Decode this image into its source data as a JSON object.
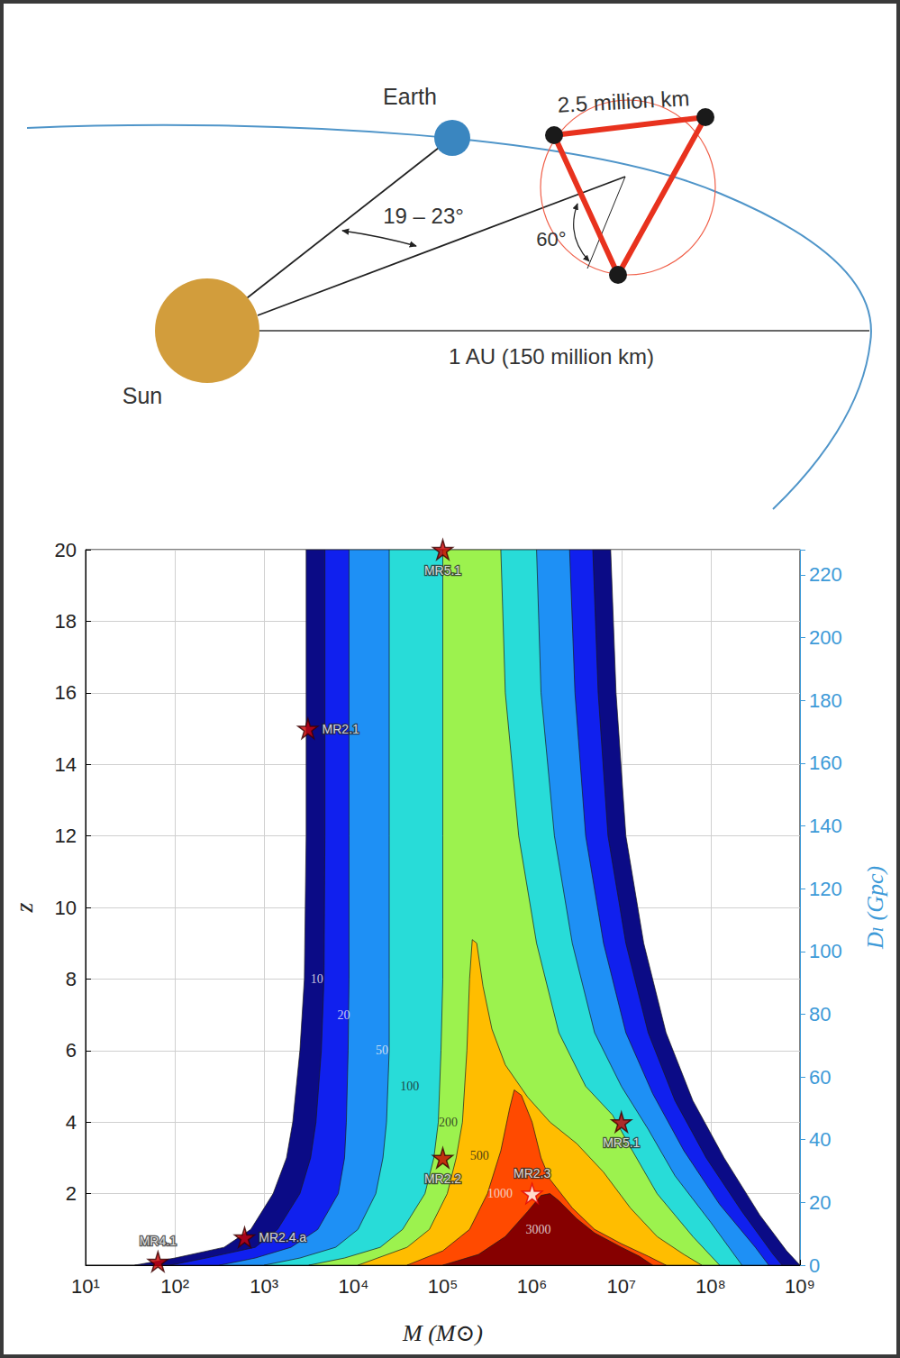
{
  "diagram": {
    "labels": {
      "earth": "Earth",
      "sun": "Sun",
      "arm_length": "2.5 million km",
      "trail_angle": "19 – 23°",
      "tilt": "60°",
      "distance": "1 AU (150 million km)"
    }
  },
  "chart_data": {
    "type": "contour",
    "x_label": "M (M⊙)",
    "y_label": "z",
    "y2_label": "Dₗ (Gpc)",
    "log": "x",
    "grid": true,
    "xlim": [
      10,
      1000000000
    ],
    "xticks": [
      {
        "value": 10,
        "label": "10¹"
      },
      {
        "value": 100,
        "label": "10²"
      },
      {
        "value": 1000,
        "label": "10³"
      },
      {
        "value": 10000,
        "label": "10⁴"
      },
      {
        "value": 100000,
        "label": "10⁵"
      },
      {
        "value": 1000000,
        "label": "10⁶"
      },
      {
        "value": 10000000,
        "label": "10⁷"
      },
      {
        "value": 100000000,
        "label": "10⁸"
      },
      {
        "value": 1000000000,
        "label": "10⁹"
      }
    ],
    "ylim": [
      0,
      20
    ],
    "yticks": [
      2,
      4,
      6,
      8,
      10,
      12,
      14,
      16,
      18,
      20
    ],
    "y2lim": [
      0,
      228
    ],
    "y2ticks": [
      0,
      20,
      40,
      60,
      80,
      100,
      120,
      140,
      160,
      180,
      200,
      220
    ],
    "contours": [
      {
        "level": 10,
        "color": "#0b0b86",
        "label_x": 3890,
        "label_y": 8,
        "x": [
          35.5,
          100,
          355,
          708,
          1259,
          1778,
          2089,
          2512,
          2818,
          2951,
          2951,
          7586000,
          8710000,
          11220000,
          17780000,
          31620000,
          63100000,
          141300000,
          354800000,
          707900000,
          1000000000
        ],
        "y": [
          0,
          0.2,
          0.5,
          1,
          2,
          3,
          4,
          6,
          8,
          12,
          20,
          20,
          16,
          12,
          9,
          6.5,
          4.6,
          3.0,
          1.4,
          0.4,
          0
        ]
      },
      {
        "level": 20,
        "color": "#1020ee",
        "label_x": 7762,
        "label_y": 7,
        "x": [
          89.1,
          224,
          794,
          1413,
          2512,
          3311,
          3802,
          4365,
          4677,
          4786,
          4786,
          4786000,
          5495000,
          7079000,
          11220000,
          19950000,
          39810000,
          89130000,
          223900000,
          501200000,
          631000000
        ],
        "y": [
          0,
          0.2,
          0.5,
          1,
          2,
          3,
          4,
          6,
          8,
          12,
          20,
          20,
          16,
          12,
          9,
          6.5,
          4.6,
          3.0,
          1.5,
          0.3,
          0
        ]
      },
      {
        "level": 50,
        "color": "#1e90f5",
        "label_x": 20890,
        "label_y": 6,
        "x": [
          316,
          794,
          1995,
          3981,
          6761,
          7943,
          8318,
          8710,
          8913,
          8913,
          8913,
          2630000,
          3020000,
          3981000,
          6310000,
          11220000,
          22390000,
          50120000,
          125900000,
          316200000,
          446700000
        ],
        "y": [
          0,
          0.2,
          0.5,
          1,
          2,
          3,
          4,
          6,
          8,
          12,
          20,
          20,
          16,
          12,
          9,
          6.5,
          4.8,
          3.2,
          1.7,
          0.5,
          0
        ]
      },
      {
        "level": 100,
        "color": "#28dcd8",
        "label_x": 42660,
        "label_y": 5,
        "x": [
          1000,
          2512,
          6310,
          11220,
          17780,
          21380,
          23440,
          25120,
          25120,
          25120,
          25120,
          1122000,
          1259000,
          1778000,
          2818000,
          5012000,
          10000000,
          19950000,
          39810000,
          100000000,
          223900000
        ],
        "y": [
          0,
          0.2,
          0.5,
          1,
          2,
          3,
          4,
          6,
          8,
          12,
          20,
          20,
          16,
          12,
          9,
          6.5,
          5,
          3.8,
          2.5,
          1.2,
          0
        ]
      },
      {
        "level": 200,
        "color": "#9cf24e",
        "label_x": 114800,
        "label_y": 4,
        "x": [
          3162,
          7943,
          19950,
          35480,
          63100,
          79430,
          89130,
          95500,
          100000,
          100000,
          100000,
          446700,
          501200,
          707900,
          1122000,
          1995000,
          3981000,
          7943000,
          12590000,
          25120000,
          63100000,
          125900000
        ],
        "y": [
          0,
          0.2,
          0.5,
          1,
          2,
          3,
          4,
          6,
          8,
          12,
          20,
          20,
          16,
          12,
          9,
          6.5,
          5,
          4.2,
          3.3,
          2.0,
          0.8,
          0
        ]
      },
      {
        "level": 500,
        "color": "#ffbd00",
        "label_x": 257000,
        "label_y": 3.05,
        "x": [
          11220,
          39810,
          70790,
          112200,
          141300,
          166000,
          186200,
          199500,
          213800,
          239900,
          281800,
          354800,
          501200,
          891300,
          1585000,
          3162000,
          6310000,
          12590000,
          25120000,
          50120000,
          79430000
        ],
        "y": [
          0,
          0.5,
          1,
          2,
          3,
          4,
          6,
          8,
          9.1,
          9.0,
          7.8,
          6.6,
          5.6,
          4.7,
          4.0,
          3.4,
          2.6,
          1.6,
          0.8,
          0.3,
          0
        ]
      },
      {
        "level": 1000,
        "color": "#ff4a00",
        "label_x": 436500,
        "label_y": 2,
        "x": [
          39810,
          100000,
          199500,
          316200,
          446700,
          562300,
          631000,
          758600,
          1000000,
          1259000,
          1585000,
          2818000,
          5012000,
          10000000,
          19950000,
          31620000
        ],
        "y": [
          0,
          0.4,
          1.0,
          2.0,
          3.2,
          4.4,
          4.9,
          4.75,
          4.0,
          3.0,
          2.4,
          1.6,
          1.0,
          0.6,
          0.25,
          0
        ]
      },
      {
        "level": 3000,
        "color": "#860000",
        "label_x": 1175000,
        "label_y": 1,
        "x": [
          100000,
          251200,
          501200,
          891300,
          1259000,
          1585000,
          1995000,
          3162000,
          5012000,
          10000000,
          15850000,
          22390000
        ],
        "y": [
          0,
          0.3,
          0.8,
          1.5,
          1.95,
          2.0,
          1.8,
          1.3,
          0.9,
          0.5,
          0.25,
          0
        ]
      }
    ],
    "marker": "star",
    "points": [
      {
        "label": "MR4.1",
        "x": 64.6,
        "y": 0.1,
        "color": "#cc0000"
      },
      {
        "label": "MR2.4.a",
        "x": 603,
        "y": 0.78,
        "color": "#cc0000"
      },
      {
        "label": "MR2.1",
        "x": 3090,
        "y": 15,
        "color": "#cc0000"
      },
      {
        "label": "MR5.1",
        "x": 100000,
        "y": 20,
        "color": "#cc0000"
      },
      {
        "label": "MR2.2",
        "x": 100000,
        "y": 3,
        "color": "#cc0000"
      },
      {
        "label": "MR2.3",
        "x": 1000000,
        "y": 2,
        "color": "#ffffff"
      },
      {
        "label": "MR5.1",
        "x": 10000000,
        "y": 4,
        "color": "#cc0000"
      }
    ]
  }
}
